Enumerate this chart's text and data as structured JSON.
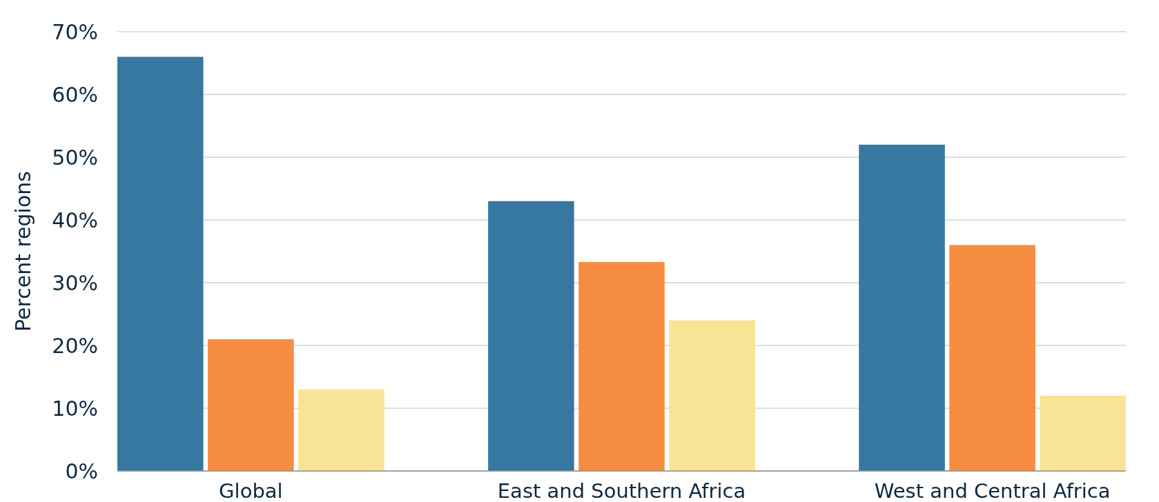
{
  "chart_data": {
    "type": "bar",
    "ylabel": "Percent regions",
    "categories": [
      "Global",
      "East and Southern Africa",
      "West and Central Africa"
    ],
    "series": [
      {
        "color": "#3778a0",
        "values": [
          66,
          43,
          52
        ]
      },
      {
        "color": "#f68d40",
        "values": [
          21,
          33.3,
          36
        ]
      },
      {
        "color": "#f9e495",
        "values": [
          13,
          24,
          12
        ]
      }
    ],
    "ylim": [
      0,
      70
    ],
    "yticks": [
      {
        "value": 0,
        "label": "0%"
      },
      {
        "value": 10,
        "label": "10%"
      },
      {
        "value": 20,
        "label": "20%"
      },
      {
        "value": 30,
        "label": "30%"
      },
      {
        "value": 40,
        "label": "40%"
      },
      {
        "value": 50,
        "label": "50%"
      },
      {
        "value": 60,
        "label": "60%"
      },
      {
        "value": 70,
        "label": "70%"
      }
    ],
    "grid": "y"
  }
}
